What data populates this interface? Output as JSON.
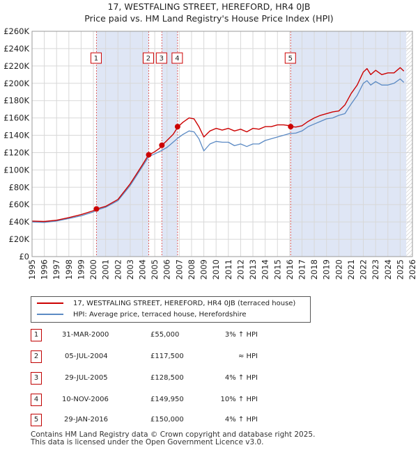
{
  "title_line1": "17, WESTFALING STREET, HEREFORD, HR4 0JB",
  "title_line2": "Price paid vs. HM Land Registry's House Price Index (HPI)",
  "colors": {
    "property": "#cc0000",
    "hpi": "#5b8ac4",
    "shade": "#dfe6f5",
    "grid": "#d8d8d8"
  },
  "legend": {
    "property_label": "17, WESTFALING STREET, HEREFORD, HR4 0JB (terraced house)",
    "hpi_label": "HPI: Average price, terraced house, Herefordshire"
  },
  "sales": [
    {
      "num": "1",
      "date": "31-MAR-2000",
      "price": "£55,000",
      "hpi": "3% ↑ HPI"
    },
    {
      "num": "2",
      "date": "05-JUL-2004",
      "price": "£117,500",
      "hpi": "≈ HPI"
    },
    {
      "num": "3",
      "date": "29-JUL-2005",
      "price": "£128,500",
      "hpi": "4% ↑ HPI"
    },
    {
      "num": "4",
      "date": "10-NOV-2006",
      "price": "£149,950",
      "hpi": "10% ↑ HPI"
    },
    {
      "num": "5",
      "date": "29-JAN-2016",
      "price": "£150,000",
      "hpi": "4% ↑ HPI"
    }
  ],
  "footer_line1": "Contains HM Land Registry data © Crown copyright and database right 2025.",
  "footer_line2": "This data is licensed under the Open Government Licence v3.0.",
  "chart_data": {
    "type": "line",
    "title": "17, WESTFALING STREET, HEREFORD, HR4 0JB",
    "subtitle": "Price paid vs. HM Land Registry's House Price Index (HPI)",
    "xlabel": "",
    "ylabel": "",
    "xlim": [
      1995,
      2026
    ],
    "ylim": [
      0,
      260000
    ],
    "y_ticks": [
      0,
      20000,
      40000,
      60000,
      80000,
      100000,
      120000,
      140000,
      160000,
      180000,
      200000,
      220000,
      240000,
      260000
    ],
    "y_tick_labels": [
      "£0",
      "£20K",
      "£40K",
      "£60K",
      "£80K",
      "£100K",
      "£120K",
      "£140K",
      "£160K",
      "£180K",
      "£200K",
      "£220K",
      "£240K",
      "£260K"
    ],
    "x_ticks": [
      1995,
      1996,
      1997,
      1998,
      1999,
      2000,
      2001,
      2002,
      2003,
      2004,
      2005,
      2006,
      2007,
      2008,
      2009,
      2010,
      2011,
      2012,
      2013,
      2014,
      2015,
      2016,
      2017,
      2018,
      2019,
      2020,
      2021,
      2022,
      2023,
      2024,
      2025,
      2026
    ],
    "x_tick_labels": [
      "1995",
      "1996",
      "1997",
      "1998",
      "1999",
      "2000",
      "2001",
      "2002",
      "2003",
      "2004",
      "2005",
      "2006",
      "2007",
      "2008",
      "2009",
      "2010",
      "2011",
      "2012",
      "2013",
      "2014",
      "2015",
      "2016",
      "2017",
      "2018",
      "2019",
      "2020",
      "2021",
      "2022",
      "2023",
      "2024",
      "2025",
      "2026"
    ],
    "grid": true,
    "legend_position": "below-left",
    "series": [
      {
        "name": "17, WESTFALING STREET, HEREFORD, HR4 0JB (terraced house)",
        "x": [
          1995.0,
          1996.0,
          1997.0,
          1998.0,
          1999.0,
          2000.0,
          2000.25,
          2001.0,
          2002.0,
          2003.0,
          2003.5,
          2004.0,
          2004.5,
          2004.75,
          2005.0,
          2005.4,
          2005.6,
          2006.0,
          2006.5,
          2006.9,
          2007.3,
          2007.8,
          2008.2,
          2008.6,
          2009.0,
          2009.5,
          2010.0,
          2010.5,
          2011.0,
          2011.5,
          2012.0,
          2012.5,
          2013.0,
          2013.5,
          2014.0,
          2014.5,
          2015.0,
          2015.5,
          2016.0,
          2016.1,
          2016.5,
          2017.0,
          2017.5,
          2018.0,
          2018.5,
          2019.0,
          2019.5,
          2020.0,
          2020.5,
          2021.0,
          2021.5,
          2022.0,
          2022.3,
          2022.6,
          2023.0,
          2023.5,
          2024.0,
          2024.5,
          2025.0,
          2025.3
        ],
        "values": [
          41000,
          40500,
          42000,
          45000,
          48500,
          53000,
          55000,
          58000,
          66000,
          84000,
          95000,
          106000,
          117500,
          119000,
          121000,
          125000,
          128500,
          134000,
          141000,
          149950,
          155000,
          160000,
          159000,
          150000,
          138000,
          145000,
          148000,
          146000,
          148000,
          145000,
          147000,
          144000,
          148000,
          147000,
          150000,
          150000,
          152000,
          152000,
          151000,
          150000,
          149500,
          151000,
          156000,
          160000,
          163000,
          165000,
          167000,
          168000,
          175000,
          188000,
          198000,
          213000,
          217000,
          210000,
          215000,
          210000,
          212000,
          212000,
          218000,
          214000
        ]
      },
      {
        "name": "HPI: Average price, terraced house, Herefordshire",
        "x": [
          1995.0,
          1996.0,
          1997.0,
          1998.0,
          1999.0,
          2000.0,
          2000.25,
          2001.0,
          2002.0,
          2003.0,
          2003.5,
          2004.0,
          2004.5,
          2004.75,
          2005.0,
          2005.5,
          2006.0,
          2006.5,
          2006.9,
          2007.3,
          2007.8,
          2008.2,
          2008.6,
          2009.0,
          2009.5,
          2010.0,
          2010.5,
          2011.0,
          2011.5,
          2012.0,
          2012.5,
          2013.0,
          2013.5,
          2014.0,
          2014.5,
          2015.0,
          2015.5,
          2016.0,
          2016.5,
          2017.0,
          2017.5,
          2018.0,
          2018.5,
          2019.0,
          2019.5,
          2020.0,
          2020.5,
          2021.0,
          2021.5,
          2022.0,
          2022.3,
          2022.6,
          2023.0,
          2023.5,
          2024.0,
          2024.5,
          2025.0,
          2025.3
        ],
        "values": [
          40000,
          39500,
          41000,
          44000,
          47000,
          51500,
          53500,
          57000,
          64500,
          82000,
          93000,
          104000,
          115000,
          117000,
          118500,
          122000,
          126000,
          132000,
          137000,
          141000,
          145000,
          144000,
          136000,
          122000,
          130000,
          133000,
          132000,
          132000,
          128000,
          130000,
          127000,
          130000,
          130000,
          134000,
          136000,
          138000,
          140000,
          142000,
          142500,
          145000,
          150000,
          153000,
          156000,
          159000,
          160000,
          163000,
          165000,
          176000,
          186000,
          200000,
          203000,
          198000,
          202000,
          198000,
          198000,
          200000,
          205000,
          201000
        ]
      }
    ],
    "sale_points": [
      {
        "label": "1",
        "x": 2000.25,
        "value": 55000
      },
      {
        "label": "2",
        "x": 2004.51,
        "value": 117500
      },
      {
        "label": "3",
        "x": 2005.58,
        "value": 128500
      },
      {
        "label": "4",
        "x": 2006.86,
        "value": 149950
      },
      {
        "label": "5",
        "x": 2016.08,
        "value": 150000
      }
    ],
    "shaded_ranges": [
      [
        2000.25,
        2004.51
      ],
      [
        2005.58,
        2006.86
      ],
      [
        2016.08,
        2025.5
      ]
    ],
    "future_start": 2025.5
  }
}
